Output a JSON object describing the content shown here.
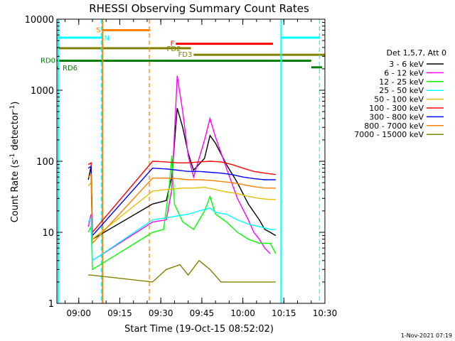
{
  "chart_data": {
    "type": "line",
    "title": "RHESSI Observing Summary Count Rates",
    "xlabel": "Start Time (19-Oct-15 08:52:02)",
    "ylabel_main": "Count Rate (s",
    "ylabel_sup1": "-1",
    "ylabel_mid": " detector",
    "ylabel_sup2": "-1",
    "ylabel_end": ")",
    "yscale": "log",
    "ylim": [
      1,
      10000
    ],
    "xlim_minutes": [
      0,
      98
    ],
    "x_ticks": [
      {
        "label": "09:00",
        "min": 8
      },
      {
        "label": "09:15",
        "min": 23
      },
      {
        "label": "09:30",
        "min": 38
      },
      {
        "label": "09:45",
        "min": 53
      },
      {
        "label": "10:00",
        "min": 68
      },
      {
        "label": "10:15",
        "min": 83
      },
      {
        "label": "10:30",
        "min": 98
      }
    ],
    "y_ticks": [
      {
        "label": "1",
        "value": 1
      },
      {
        "label": "10",
        "value": 10
      },
      {
        "label": "100",
        "value": 100
      },
      {
        "label": "1000",
        "value": 1000
      },
      {
        "label": "10000",
        "value": 10000
      }
    ],
    "legend_title": "Det 1,5,7, Att 0",
    "footer_date": "1-Nov-2021 07:19",
    "series": [
      {
        "name": "3 - 6 keV",
        "color": "#000000",
        "points": [
          [
            11.5,
            55
          ],
          [
            12.5,
            85
          ],
          [
            13,
            8
          ],
          [
            35,
            25
          ],
          [
            40,
            28
          ],
          [
            42,
            60
          ],
          [
            44,
            560
          ],
          [
            46,
            300
          ],
          [
            48,
            130
          ],
          [
            50,
            75
          ],
          [
            54,
            110
          ],
          [
            56,
            230
          ],
          [
            58,
            180
          ],
          [
            62,
            90
          ],
          [
            66,
            50
          ],
          [
            70,
            25
          ],
          [
            74,
            15
          ],
          [
            76,
            11
          ],
          [
            78,
            10
          ],
          [
            80,
            9
          ]
        ]
      },
      {
        "name": "6 - 12 keV",
        "color": "#ff00ff",
        "points": [
          [
            11.5,
            12
          ],
          [
            12.5,
            18
          ],
          [
            13,
            4
          ],
          [
            35,
            14
          ],
          [
            40,
            15
          ],
          [
            42,
            40
          ],
          [
            44,
            1600
          ],
          [
            46,
            500
          ],
          [
            48,
            120
          ],
          [
            50,
            60
          ],
          [
            54,
            200
          ],
          [
            56,
            400
          ],
          [
            58,
            220
          ],
          [
            62,
            80
          ],
          [
            66,
            30
          ],
          [
            70,
            15
          ],
          [
            72,
            10
          ],
          [
            74,
            8
          ],
          [
            76,
            6
          ],
          [
            78,
            5
          ]
        ]
      },
      {
        "name": "12 - 25 keV",
        "color": "#00ff00",
        "points": [
          [
            11.5,
            10
          ],
          [
            12.5,
            12
          ],
          [
            13,
            3
          ],
          [
            35,
            10
          ],
          [
            39,
            11
          ],
          [
            41,
            40
          ],
          [
            42,
            120
          ],
          [
            43,
            25
          ],
          [
            46,
            14
          ],
          [
            50,
            11
          ],
          [
            54,
            20
          ],
          [
            56,
            32
          ],
          [
            58,
            18
          ],
          [
            62,
            14
          ],
          [
            66,
            10
          ],
          [
            70,
            8
          ],
          [
            74,
            7
          ],
          [
            78,
            7
          ],
          [
            80,
            5
          ]
        ]
      },
      {
        "name": "25 - 50 keV",
        "color": "#00ffff",
        "points": [
          [
            11.5,
            14
          ],
          [
            12.5,
            16
          ],
          [
            13,
            4
          ],
          [
            35,
            15
          ],
          [
            40,
            16
          ],
          [
            44,
            17
          ],
          [
            48,
            18
          ],
          [
            52,
            20
          ],
          [
            56,
            22
          ],
          [
            58,
            19
          ],
          [
            62,
            18
          ],
          [
            66,
            15
          ],
          [
            70,
            13
          ],
          [
            74,
            12
          ],
          [
            78,
            11
          ],
          [
            80,
            11
          ]
        ]
      },
      {
        "name": "50 - 100 keV",
        "color": "#e0c000",
        "points": [
          [
            11.5,
            45
          ],
          [
            12.5,
            50
          ],
          [
            13,
            8
          ],
          [
            35,
            38
          ],
          [
            40,
            40
          ],
          [
            46,
            42
          ],
          [
            50,
            42
          ],
          [
            54,
            43
          ],
          [
            58,
            40
          ],
          [
            62,
            37
          ],
          [
            66,
            35
          ],
          [
            70,
            32
          ],
          [
            74,
            30
          ],
          [
            78,
            29
          ],
          [
            80,
            29
          ]
        ]
      },
      {
        "name": "100 - 300 keV",
        "color": "#ff0000",
        "points": [
          [
            11.5,
            90
          ],
          [
            12.5,
            95
          ],
          [
            13,
            10
          ],
          [
            35,
            100
          ],
          [
            40,
            98
          ],
          [
            44,
            95
          ],
          [
            48,
            95
          ],
          [
            52,
            98
          ],
          [
            56,
            100
          ],
          [
            60,
            98
          ],
          [
            64,
            90
          ],
          [
            68,
            80
          ],
          [
            72,
            72
          ],
          [
            76,
            68
          ],
          [
            80,
            65
          ]
        ]
      },
      {
        "name": "300 - 800 keV",
        "color": "#0000ff",
        "points": [
          [
            11.5,
            80
          ],
          [
            12.5,
            85
          ],
          [
            13,
            9
          ],
          [
            35,
            80
          ],
          [
            40,
            78
          ],
          [
            44,
            75
          ],
          [
            48,
            72
          ],
          [
            52,
            72
          ],
          [
            56,
            70
          ],
          [
            60,
            68
          ],
          [
            64,
            65
          ],
          [
            68,
            60
          ],
          [
            72,
            57
          ],
          [
            76,
            55
          ],
          [
            80,
            55
          ]
        ]
      },
      {
        "name": "800 - 7000 keV",
        "color": "#ff8000",
        "points": [
          [
            11.5,
            60
          ],
          [
            12.5,
            65
          ],
          [
            13,
            7
          ],
          [
            35,
            58
          ],
          [
            40,
            58
          ],
          [
            44,
            57
          ],
          [
            48,
            55
          ],
          [
            52,
            55
          ],
          [
            56,
            54
          ],
          [
            60,
            52
          ],
          [
            64,
            50
          ],
          [
            68,
            47
          ],
          [
            72,
            44
          ],
          [
            76,
            42
          ],
          [
            80,
            42
          ]
        ]
      },
      {
        "name": "7000 - 15000 keV",
        "color": "#808000",
        "points": [
          [
            11.5,
            2.5
          ],
          [
            12.5,
            2.5
          ],
          [
            35,
            2
          ],
          [
            40,
            3
          ],
          [
            45,
            3.5
          ],
          [
            48,
            2.5
          ],
          [
            52,
            4
          ],
          [
            56,
            3
          ],
          [
            60,
            2
          ],
          [
            64,
            2
          ],
          [
            68,
            2
          ],
          [
            72,
            2
          ],
          [
            76,
            2
          ],
          [
            80,
            2
          ]
        ]
      }
    ],
    "flag_bars": [
      {
        "label": "N",
        "color": "#00ffff",
        "row_value": 5500,
        "segments": [
          [
            0,
            16.5
          ],
          [
            82,
            96
          ]
        ]
      },
      {
        "label": "S",
        "color": "#ff8000",
        "row_value": 7000,
        "segments": [
          [
            16.5,
            34
          ]
        ]
      },
      {
        "label": "F",
        "color": "#ff0000",
        "row_value": 4500,
        "segments": [
          [
            43.5,
            79
          ]
        ]
      },
      {
        "label": "FD2",
        "color": "#808000",
        "row_value": 3900,
        "segments": [
          [
            0,
            49
          ]
        ]
      },
      {
        "label": "FD3",
        "color": "#808000",
        "row_value": 3150,
        "segments": [
          [
            50,
            98
          ]
        ]
      },
      {
        "label": "RD0",
        "color": "#008000",
        "row_value": 2600,
        "segments": [
          [
            0,
            93
          ]
        ]
      },
      {
        "label": "RD6",
        "color": "#008000",
        "row_value": 2100,
        "segments": [
          [
            0,
            0.6
          ],
          [
            93,
            97
          ]
        ]
      }
    ],
    "v_lines": [
      {
        "min": 0.5,
        "color": "#00ffff",
        "style": "solid"
      },
      {
        "min": 16.3,
        "color": "#00ffff",
        "style": "dashed"
      },
      {
        "min": 16.7,
        "color": "#ff8000",
        "style": "solid"
      },
      {
        "min": 33.8,
        "color": "#ff8000",
        "style": "dashed"
      },
      {
        "min": 82,
        "color": "#00ffff",
        "style": "solid"
      },
      {
        "min": 96,
        "color": "#00ffff",
        "style": "dashed"
      }
    ]
  }
}
